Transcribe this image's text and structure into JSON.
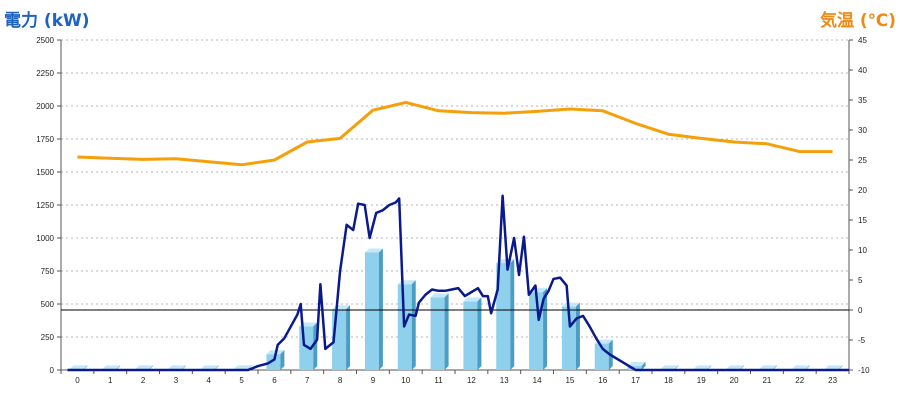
{
  "chart_data": {
    "type": "bar+line",
    "left_axis": {
      "label": "電力 (kW)",
      "ylim": [
        0,
        2500
      ],
      "ticks": [
        0,
        250,
        500,
        750,
        1000,
        1250,
        1500,
        1750,
        2000,
        2250,
        2500
      ]
    },
    "right_axis": {
      "label": "気温 (℃)",
      "ylim": [
        -10,
        45
      ],
      "ticks": [
        -10,
        -5,
        0,
        5,
        10,
        15,
        20,
        25,
        30,
        35,
        40,
        45
      ]
    },
    "x_categories": [
      "0",
      "1",
      "2",
      "3",
      "4",
      "5",
      "6",
      "7",
      "8",
      "9",
      "10",
      "11",
      "12",
      "13",
      "14",
      "15",
      "16",
      "17",
      "18",
      "19",
      "20",
      "21",
      "22",
      "23"
    ],
    "grid": true,
    "colors": {
      "bar_front": "#8fd0ec",
      "bar_top": "#c4e8f7",
      "bar_side": "#4b9dc4",
      "power_line": "#0a1a8c",
      "temp_line": "#f5a00a",
      "left_title": "#1f63c0",
      "right_title": "#ef8a16",
      "zero_line": "#000000"
    },
    "hourly_power_bars": [
      5,
      5,
      5,
      5,
      5,
      5,
      120,
      330,
      460,
      890,
      650,
      550,
      520,
      810,
      590,
      480,
      200,
      30,
      5,
      5,
      5,
      5,
      5,
      5
    ],
    "temperature": [
      {
        "x": 0,
        "y": 25.5
      },
      {
        "x": 1,
        "y": 25.3
      },
      {
        "x": 2,
        "y": 25.1
      },
      {
        "x": 3,
        "y": 25.2
      },
      {
        "x": 4,
        "y": 24.7
      },
      {
        "x": 5,
        "y": 24.2
      },
      {
        "x": 6,
        "y": 25.0
      },
      {
        "x": 7,
        "y": 28.0
      },
      {
        "x": 8,
        "y": 28.6
      },
      {
        "x": 9,
        "y": 33.3
      },
      {
        "x": 10,
        "y": 34.6
      },
      {
        "x": 11,
        "y": 33.2
      },
      {
        "x": 12,
        "y": 32.9
      },
      {
        "x": 13,
        "y": 32.8
      },
      {
        "x": 14,
        "y": 33.1
      },
      {
        "x": 15,
        "y": 33.5
      },
      {
        "x": 16,
        "y": 33.2
      },
      {
        "x": 17,
        "y": 31.1
      },
      {
        "x": 18,
        "y": 29.3
      },
      {
        "x": 19,
        "y": 28.6
      },
      {
        "x": 20,
        "y": 28.0
      },
      {
        "x": 21,
        "y": 27.7
      },
      {
        "x": 22,
        "y": 26.4
      },
      {
        "x": 23,
        "y": 26.4
      }
    ],
    "power_line": [
      {
        "x": -0.3,
        "y": 0
      },
      {
        "x": 5.2,
        "y": 0
      },
      {
        "x": 5.5,
        "y": 30
      },
      {
        "x": 5.8,
        "y": 50
      },
      {
        "x": 6.0,
        "y": 80
      },
      {
        "x": 6.1,
        "y": 190
      },
      {
        "x": 6.3,
        "y": 240
      },
      {
        "x": 6.5,
        "y": 330
      },
      {
        "x": 6.7,
        "y": 420
      },
      {
        "x": 6.8,
        "y": 500
      },
      {
        "x": 6.9,
        "y": 190
      },
      {
        "x": 7.1,
        "y": 160
      },
      {
        "x": 7.3,
        "y": 230
      },
      {
        "x": 7.4,
        "y": 650
      },
      {
        "x": 7.55,
        "y": 160
      },
      {
        "x": 7.8,
        "y": 210
      },
      {
        "x": 8.0,
        "y": 750
      },
      {
        "x": 8.2,
        "y": 1100
      },
      {
        "x": 8.4,
        "y": 1060
      },
      {
        "x": 8.55,
        "y": 1260
      },
      {
        "x": 8.75,
        "y": 1250
      },
      {
        "x": 8.9,
        "y": 1000
      },
      {
        "x": 9.1,
        "y": 1190
      },
      {
        "x": 9.3,
        "y": 1210
      },
      {
        "x": 9.5,
        "y": 1250
      },
      {
        "x": 9.7,
        "y": 1270
      },
      {
        "x": 9.8,
        "y": 1300
      },
      {
        "x": 9.95,
        "y": 330
      },
      {
        "x": 10.1,
        "y": 420
      },
      {
        "x": 10.3,
        "y": 410
      },
      {
        "x": 10.4,
        "y": 510
      },
      {
        "x": 10.6,
        "y": 570
      },
      {
        "x": 10.8,
        "y": 610
      },
      {
        "x": 11.0,
        "y": 600
      },
      {
        "x": 11.2,
        "y": 600
      },
      {
        "x": 11.4,
        "y": 610
      },
      {
        "x": 11.6,
        "y": 620
      },
      {
        "x": 11.8,
        "y": 560
      },
      {
        "x": 12.0,
        "y": 590
      },
      {
        "x": 12.2,
        "y": 620
      },
      {
        "x": 12.35,
        "y": 560
      },
      {
        "x": 12.5,
        "y": 560
      },
      {
        "x": 12.6,
        "y": 430
      },
      {
        "x": 12.8,
        "y": 610
      },
      {
        "x": 12.95,
        "y": 1320
      },
      {
        "x": 13.1,
        "y": 760
      },
      {
        "x": 13.3,
        "y": 1000
      },
      {
        "x": 13.45,
        "y": 720
      },
      {
        "x": 13.6,
        "y": 1010
      },
      {
        "x": 13.75,
        "y": 570
      },
      {
        "x": 13.95,
        "y": 640
      },
      {
        "x": 14.05,
        "y": 380
      },
      {
        "x": 14.2,
        "y": 540
      },
      {
        "x": 14.35,
        "y": 600
      },
      {
        "x": 14.5,
        "y": 690
      },
      {
        "x": 14.7,
        "y": 700
      },
      {
        "x": 14.9,
        "y": 640
      },
      {
        "x": 15.0,
        "y": 330
      },
      {
        "x": 15.2,
        "y": 390
      },
      {
        "x": 15.4,
        "y": 410
      },
      {
        "x": 15.6,
        "y": 330
      },
      {
        "x": 15.8,
        "y": 240
      },
      {
        "x": 16.0,
        "y": 160
      },
      {
        "x": 16.2,
        "y": 120
      },
      {
        "x": 16.4,
        "y": 90
      },
      {
        "x": 16.6,
        "y": 60
      },
      {
        "x": 16.8,
        "y": 30
      },
      {
        "x": 17.0,
        "y": 0
      },
      {
        "x": 23.5,
        "y": 0
      }
    ]
  }
}
